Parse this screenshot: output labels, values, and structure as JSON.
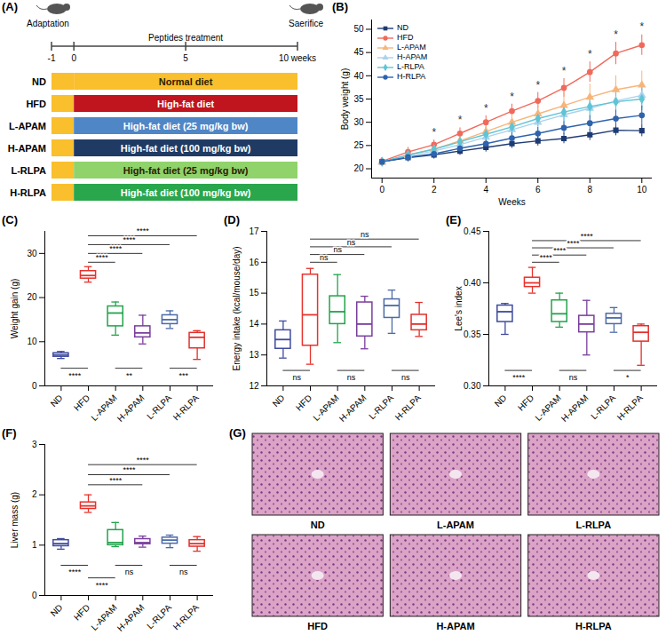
{
  "chart_data": [
    {
      "type": "line",
      "panel": "(B)",
      "x_label": "Weeks",
      "y_label": "Body weight (g)",
      "x": [
        0,
        1,
        2,
        3,
        4,
        5,
        6,
        7,
        8,
        9,
        10
      ],
      "xlim": [
        -0.4,
        10.4
      ],
      "xticks": [
        0,
        2,
        4,
        6,
        8,
        10
      ],
      "ylim": [
        18,
        52
      ],
      "yticks": [
        20,
        25,
        30,
        35,
        40,
        45,
        50
      ],
      "legend": "top-left",
      "series": [
        {
          "name": "ND",
          "color": "#1f3b73",
          "marker": "square",
          "values": [
            21.5,
            22.4,
            23.0,
            23.8,
            24.6,
            25.4,
            26.0,
            26.5,
            27.3,
            28.3,
            28.2
          ],
          "errors": [
            0.8,
            0.9,
            0.9,
            0.9,
            1.0,
            1.0,
            1.1,
            1.1,
            1.2,
            1.2,
            1.3
          ]
        },
        {
          "name": "HFD",
          "color": "#f06a5c",
          "marker": "circle",
          "values": [
            21.6,
            23.6,
            25.2,
            27.6,
            30.0,
            32.4,
            34.6,
            37.4,
            40.8,
            44.8,
            46.6
          ],
          "errors": [
            0.8,
            1.0,
            1.0,
            1.2,
            1.4,
            1.5,
            1.8,
            2.0,
            2.2,
            2.4,
            2.2
          ]
        },
        {
          "name": "L-APAM",
          "color": "#f7b57a",
          "marker": "triangle",
          "values": [
            21.4,
            23.0,
            24.2,
            26.0,
            28.0,
            30.0,
            31.8,
            33.6,
            35.4,
            37.0,
            38.0
          ],
          "errors": [
            0.8,
            1.0,
            1.2,
            1.5,
            1.8,
            2.0,
            2.3,
            2.6,
            2.8,
            3.0,
            3.0
          ]
        },
        {
          "name": "H-APAM",
          "color": "#a9d3ec",
          "marker": "triangle",
          "values": [
            21.5,
            22.8,
            23.8,
            25.2,
            26.8,
            28.4,
            30.0,
            31.6,
            33.0,
            34.6,
            35.8
          ],
          "errors": [
            0.8,
            0.9,
            1.0,
            1.3,
            1.5,
            1.8,
            2.0,
            2.2,
            2.5,
            2.7,
            2.8
          ]
        },
        {
          "name": "L-RLPA",
          "color": "#5fc4d6",
          "marker": "diamond",
          "values": [
            21.5,
            23.0,
            24.2,
            25.8,
            27.4,
            29.0,
            30.8,
            32.2,
            33.4,
            34.4,
            35.0
          ],
          "errors": [
            0.8,
            0.9,
            1.0,
            1.2,
            1.4,
            1.6,
            1.8,
            2.0,
            2.2,
            2.4,
            2.5
          ]
        },
        {
          "name": "H-RLPA",
          "color": "#2f63ad",
          "marker": "circle",
          "values": [
            21.5,
            22.5,
            23.2,
            24.4,
            25.4,
            26.6,
            27.6,
            28.8,
            29.8,
            30.8,
            31.5
          ],
          "errors": [
            0.8,
            0.9,
            0.9,
            1.0,
            1.1,
            1.2,
            1.3,
            1.4,
            1.6,
            1.8,
            2.0
          ]
        }
      ],
      "annotations": [
        {
          "x": 2,
          "y": 27.8,
          "text": "*"
        },
        {
          "x": 3,
          "y": 30.5,
          "text": "*"
        },
        {
          "x": 4,
          "y": 33.0,
          "text": "*"
        },
        {
          "x": 5,
          "y": 35.5,
          "text": "*"
        },
        {
          "x": 6,
          "y": 38.0,
          "text": "*"
        },
        {
          "x": 7,
          "y": 41.0,
          "text": "*"
        },
        {
          "x": 8,
          "y": 44.6,
          "text": "*"
        },
        {
          "x": 9,
          "y": 48.8,
          "text": "*"
        },
        {
          "x": 10,
          "y": 50.5,
          "text": "*"
        }
      ]
    },
    {
      "type": "box",
      "panel": "(C)",
      "y_label": "Weight gain (g)",
      "categories": [
        "ND",
        "HFD",
        "L-APAM",
        "H-APAM",
        "L-RLPA",
        "H-RLPA"
      ],
      "colors": [
        "#3f4a9e",
        "#e8322c",
        "#22a34a",
        "#7a3d9c",
        "#4b6aa6",
        "#e0312d"
      ],
      "ylim": [
        0,
        35
      ],
      "yticks": [
        0,
        10,
        20,
        30
      ],
      "boxes": [
        {
          "min": 6.2,
          "q1": 6.6,
          "median": 7.0,
          "q3": 7.4,
          "max": 7.8
        },
        {
          "min": 23.5,
          "q1": 24.3,
          "median": 25.0,
          "q3": 26.0,
          "max": 27.0
        },
        {
          "min": 11.5,
          "q1": 13.5,
          "median": 16.5,
          "q3": 18.0,
          "max": 19.0
        },
        {
          "min": 9.5,
          "q1": 11.0,
          "median": 12.0,
          "q3": 13.5,
          "max": 16.0
        },
        {
          "min": 13.0,
          "q1": 14.0,
          "median": 15.0,
          "q3": 16.0,
          "max": 17.0
        },
        {
          "min": 6.0,
          "q1": 8.5,
          "median": 11.0,
          "q3": 12.0,
          "max": 12.5
        }
      ],
      "comparisons": [
        {
          "from": "HFD",
          "to": "L-APAM",
          "y": 28.0,
          "label": "****"
        },
        {
          "from": "HFD",
          "to": "H-APAM",
          "y": 30.0,
          "label": "****"
        },
        {
          "from": "HFD",
          "to": "L-RLPA",
          "y": 32.0,
          "label": "****"
        },
        {
          "from": "HFD",
          "to": "H-RLPA",
          "y": 34.0,
          "label": "****"
        },
        {
          "from": "ND",
          "to": "HFD",
          "y": 4.0,
          "label": "****"
        },
        {
          "from": "L-APAM",
          "to": "H-APAM",
          "y": 4.0,
          "label": "**"
        },
        {
          "from": "L-RLPA",
          "to": "H-RLPA",
          "y": 4.0,
          "label": "***"
        }
      ]
    },
    {
      "type": "box",
      "panel": "(D)",
      "y_label": "Energy intake (kcal/mouse/day)",
      "categories": [
        "ND",
        "HFD",
        "L-APAM",
        "H-APAM",
        "L-RLPA",
        "H-RLPA"
      ],
      "colors": [
        "#3f4a9e",
        "#e8322c",
        "#22a34a",
        "#7a3d9c",
        "#4b6aa6",
        "#e0312d"
      ],
      "ylim": [
        12,
        17
      ],
      "yticks": [
        12,
        13,
        14,
        15,
        16,
        17
      ],
      "boxes": [
        {
          "min": 12.9,
          "q1": 13.2,
          "median": 13.5,
          "q3": 13.8,
          "max": 14.1
        },
        {
          "min": 12.7,
          "q1": 13.3,
          "median": 14.3,
          "q3": 15.6,
          "max": 15.8
        },
        {
          "min": 13.4,
          "q1": 14.0,
          "median": 14.4,
          "q3": 14.9,
          "max": 15.6
        },
        {
          "min": 13.2,
          "q1": 13.6,
          "median": 14.0,
          "q3": 14.7,
          "max": 14.9
        },
        {
          "min": 13.7,
          "q1": 14.2,
          "median": 14.6,
          "q3": 14.8,
          "max": 15.1
        },
        {
          "min": 13.6,
          "q1": 13.8,
          "median": 14.0,
          "q3": 14.3,
          "max": 14.7
        }
      ],
      "comparisons": [
        {
          "from": "HFD",
          "to": "L-APAM",
          "y": 16.0,
          "label": "ns"
        },
        {
          "from": "HFD",
          "to": "H-APAM",
          "y": 16.25,
          "label": "ns"
        },
        {
          "from": "HFD",
          "to": "L-RLPA",
          "y": 16.5,
          "label": "ns"
        },
        {
          "from": "HFD",
          "to": "H-RLPA",
          "y": 16.75,
          "label": "ns"
        },
        {
          "from": "ND",
          "to": "HFD",
          "y": 12.5,
          "label": "ns"
        },
        {
          "from": "L-APAM",
          "to": "H-APAM",
          "y": 12.5,
          "label": "ns"
        },
        {
          "from": "L-RLPA",
          "to": "H-RLPA",
          "y": 12.5,
          "label": "ns"
        }
      ]
    },
    {
      "type": "box",
      "panel": "(E)",
      "y_label": "Lee's index",
      "categories": [
        "ND",
        "HFD",
        "L-APAM",
        "H-APAM",
        "L-RLPA",
        "H-RLPA"
      ],
      "colors": [
        "#3f4a9e",
        "#e8322c",
        "#22a34a",
        "#7a3d9c",
        "#4b6aa6",
        "#e0312d"
      ],
      "ylim": [
        0.3,
        0.45
      ],
      "yticks": [
        {
          "value": 0.3,
          "label": "0.30"
        },
        0.35,
        {
          "value": 0.4,
          "label": "0.40"
        },
        0.45
      ],
      "boxes": [
        {
          "min": 0.35,
          "q1": 0.362,
          "median": 0.372,
          "q3": 0.378,
          "max": 0.38
        },
        {
          "min": 0.39,
          "q1": 0.396,
          "median": 0.4,
          "q3": 0.405,
          "max": 0.415
        },
        {
          "min": 0.357,
          "q1": 0.362,
          "median": 0.37,
          "q3": 0.383,
          "max": 0.39
        },
        {
          "min": 0.33,
          "q1": 0.352,
          "median": 0.36,
          "q3": 0.368,
          "max": 0.383
        },
        {
          "min": 0.352,
          "q1": 0.36,
          "median": 0.366,
          "q3": 0.37,
          "max": 0.376
        },
        {
          "min": 0.32,
          "q1": 0.343,
          "median": 0.352,
          "q3": 0.358,
          "max": 0.36
        }
      ],
      "comparisons": [
        {
          "from": "HFD",
          "to": "L-APAM",
          "y": 0.42,
          "label": "****"
        },
        {
          "from": "HFD",
          "to": "H-APAM",
          "y": 0.427,
          "label": "****"
        },
        {
          "from": "HFD",
          "to": "L-RLPA",
          "y": 0.434,
          "label": "****"
        },
        {
          "from": "HFD",
          "to": "H-RLPA",
          "y": 0.441,
          "label": "****"
        },
        {
          "from": "ND",
          "to": "HFD",
          "y": 0.315,
          "label": "****"
        },
        {
          "from": "L-APAM",
          "to": "H-APAM",
          "y": 0.315,
          "label": "ns"
        },
        {
          "from": "L-RLPA",
          "to": "H-RLPA",
          "y": 0.315,
          "label": "*"
        }
      ]
    },
    {
      "type": "box",
      "panel": "(F)",
      "y_label": "Liver mass (g)",
      "categories": [
        "ND",
        "HFD",
        "L-APAM",
        "H-APAM",
        "L-RLPA",
        "H-RLPA"
      ],
      "colors": [
        "#3f4a9e",
        "#e8322c",
        "#22a34a",
        "#7a3d9c",
        "#4b6aa6",
        "#e0312d"
      ],
      "ylim": [
        0,
        3
      ],
      "yticks": [
        0,
        1,
        2,
        3
      ],
      "boxes": [
        {
          "min": 0.92,
          "q1": 0.98,
          "median": 1.03,
          "q3": 1.1,
          "max": 1.13
        },
        {
          "min": 1.65,
          "q1": 1.72,
          "median": 1.78,
          "q3": 1.85,
          "max": 2.0
        },
        {
          "min": 0.97,
          "q1": 1.0,
          "median": 1.05,
          "q3": 1.3,
          "max": 1.45
        },
        {
          "min": 0.96,
          "q1": 1.02,
          "median": 1.05,
          "q3": 1.12,
          "max": 1.18
        },
        {
          "min": 0.95,
          "q1": 1.03,
          "median": 1.1,
          "q3": 1.15,
          "max": 1.2
        },
        {
          "min": 0.88,
          "q1": 0.97,
          "median": 1.03,
          "q3": 1.1,
          "max": 1.17
        }
      ],
      "comparisons": [
        {
          "from": "HFD",
          "to": "H-APAM",
          "y": 2.2,
          "label": "****"
        },
        {
          "from": "HFD",
          "to": "L-RLPA",
          "y": 2.4,
          "label": "****"
        },
        {
          "from": "HFD",
          "to": "H-RLPA",
          "y": 2.6,
          "label": "****"
        },
        {
          "from": "ND",
          "to": "HFD",
          "y": 0.6,
          "label": "****"
        },
        {
          "from": "HFD",
          "to": "L-APAM",
          "y": 0.35,
          "label": "****"
        },
        {
          "from": "L-APAM",
          "to": "H-APAM",
          "y": 0.6,
          "label": "ns"
        },
        {
          "from": "L-RLPA",
          "to": "H-RLPA",
          "y": 0.6,
          "label": "ns"
        }
      ]
    }
  ],
  "diagram": {
    "panel": "(A)",
    "start": "Adaptation",
    "phase": "Peptides treatment",
    "end": "Saerifice",
    "range": [
      -1,
      10
    ],
    "ticks": [
      -1,
      0,
      5,
      {
        "value": 10,
        "label": "10 weeks"
      }
    ],
    "adaptation_color": "#f9bf2c",
    "groups": [
      {
        "name": "ND",
        "color": "#f9bf2c",
        "label": "Normal diet"
      },
      {
        "name": "HFD",
        "color": "#c0141e",
        "label": "High-fat diet"
      },
      {
        "name": "L-APAM",
        "color": "#4f86c6",
        "label": "High-fat diet (25 mg/kg bw)"
      },
      {
        "name": "H-APAM",
        "color": "#1f3b64",
        "label": "High-fat diet (100 mg/kg bw)"
      },
      {
        "name": "L-RLPA",
        "color": "#8fd36a",
        "label": "High-fat diet (25 mg/kg bw)"
      },
      {
        "name": "H-RLPA",
        "color": "#2aa64c",
        "label": "High-fat diet (100 mg/kg bw)"
      }
    ]
  },
  "images": {
    "panel": "(G)",
    "labels": [
      "ND",
      "L-APAM",
      "L-RLPA",
      "HFD",
      "H-APAM",
      "H-RLPA"
    ]
  }
}
